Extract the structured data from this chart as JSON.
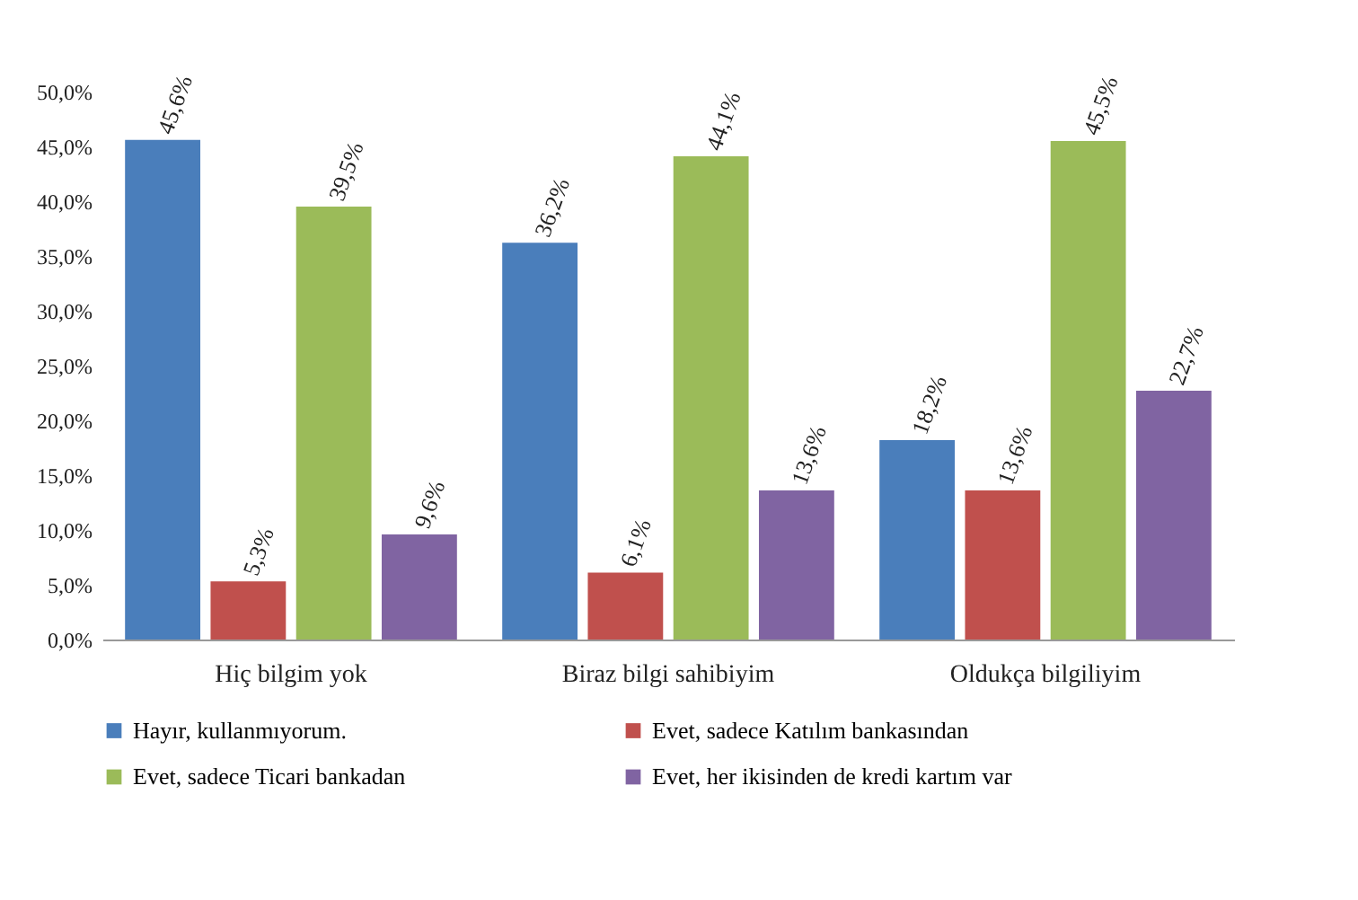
{
  "chart_data": {
    "type": "bar",
    "categories": [
      "Hiç bilgim yok",
      "Biraz bilgi sahibiyim",
      "Oldukça bilgiliyim"
    ],
    "series": [
      {
        "name": "Hayır, kullanmıyorum.",
        "color": "#4a7ebb",
        "values": [
          45.6,
          36.2,
          18.2
        ],
        "value_labels": [
          "45,6%",
          "36,2%",
          "18,2%"
        ]
      },
      {
        "name": "Evet, sadece Katılım bankasından",
        "color": "#c0504d",
        "values": [
          5.3,
          6.1,
          13.6
        ],
        "value_labels": [
          "5,3%",
          "6,1%",
          "13,6%"
        ]
      },
      {
        "name": "Evet, sadece Ticari bankadan",
        "color": "#9bbb59",
        "values": [
          39.5,
          44.1,
          45.5
        ],
        "value_labels": [
          "39,5%",
          "44,1%",
          "45,5%"
        ]
      },
      {
        "name": "Evet, her ikisinden de kredi kartım var",
        "color": "#8064a2",
        "values": [
          9.6,
          13.6,
          22.7
        ],
        "value_labels": [
          "9,6%",
          "13,6%",
          "22,7%"
        ]
      }
    ],
    "ylim": [
      0,
      50
    ],
    "yticks": [
      {
        "value": 0,
        "label": "0,0%"
      },
      {
        "value": 5,
        "label": "5,0%"
      },
      {
        "value": 10,
        "label": "10,0%"
      },
      {
        "value": 15,
        "label": "15,0%"
      },
      {
        "value": 20,
        "label": "20,0%"
      },
      {
        "value": 25,
        "label": "25,0%"
      },
      {
        "value": 30,
        "label": "30,0%"
      },
      {
        "value": 35,
        "label": "35,0%"
      },
      {
        "value": 40,
        "label": "40,0%"
      },
      {
        "value": 45,
        "label": "45,0%"
      },
      {
        "value": 50,
        "label": "50,0%"
      }
    ],
    "legend": "bottom"
  }
}
